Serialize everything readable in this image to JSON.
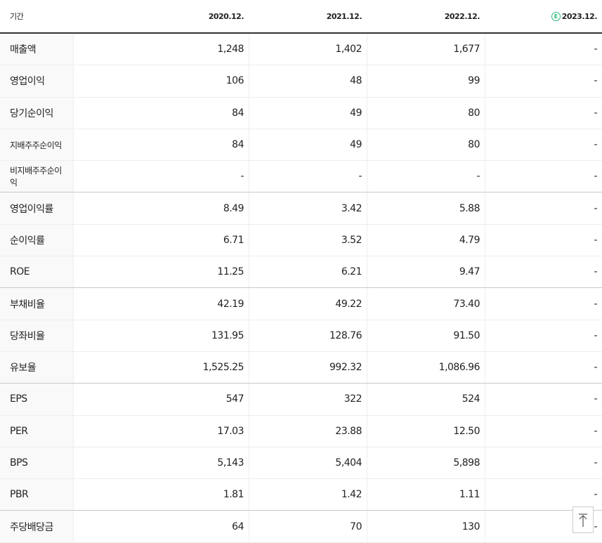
{
  "table": {
    "header": [
      "기간",
      "2020.12.",
      "2021.12.",
      "2022.12.",
      "2023.12."
    ],
    "estimate_badge": "E",
    "rows": [
      [
        "매출액",
        "1,248",
        "1,402",
        "1,677",
        "-"
      ],
      [
        "영업이익",
        "106",
        "48",
        "99",
        "-"
      ],
      [
        "당기순이익",
        "84",
        "49",
        "80",
        "-"
      ],
      [
        "지배주주순이익",
        "84",
        "49",
        "80",
        "-"
      ],
      [
        "비지배주주순이익",
        "-",
        "-",
        "-",
        "-"
      ],
      [
        "영업이익률",
        "8.49",
        "3.42",
        "5.88",
        "-"
      ],
      [
        "순이익률",
        "6.71",
        "3.52",
        "4.79",
        "-"
      ],
      [
        "ROE",
        "11.25",
        "6.21",
        "9.47",
        "-"
      ],
      [
        "부채비율",
        "42.19",
        "49.22",
        "73.40",
        "-"
      ],
      [
        "당좌비율",
        "131.95",
        "128.76",
        "91.50",
        "-"
      ],
      [
        "유보율",
        "1,525.25",
        "992.32",
        "1,086.96",
        "-"
      ],
      [
        "EPS",
        "547",
        "322",
        "524",
        "-"
      ],
      [
        "PER",
        "17.03",
        "23.88",
        "12.50",
        "-"
      ],
      [
        "BPS",
        "5,143",
        "5,404",
        "5,898",
        "-"
      ],
      [
        "PBR",
        "1.81",
        "1.42",
        "1.11",
        "-"
      ],
      [
        "주당배당금",
        "64",
        "70",
        "130",
        "-"
      ]
    ]
  }
}
